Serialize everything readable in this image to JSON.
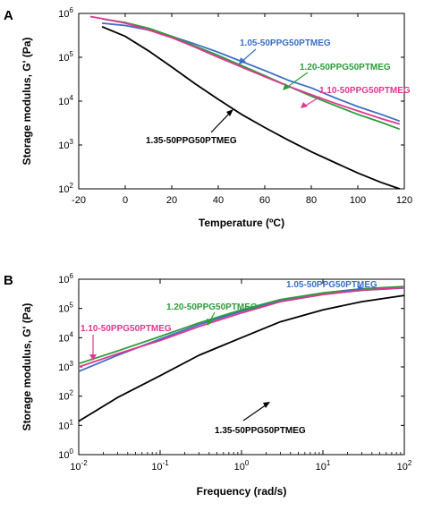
{
  "chart_data": [
    {
      "panel_label": "A",
      "type": "line",
      "xlabel": "Temperature  (ºC)",
      "ylabel": "Storage modulus, G' (Pa)",
      "xlim": [
        -20,
        120
      ],
      "ylim_exp": [
        2,
        6
      ],
      "yscale": "log",
      "x_ticks": [
        "-20",
        "0",
        "20",
        "40",
        "60",
        "80",
        "100",
        "120"
      ],
      "y_tick_exponents": [
        "2",
        "3",
        "4",
        "5",
        "6"
      ],
      "y_tick_base": "10",
      "series": [
        {
          "name": "1.05-50PPG50PTMEG",
          "color": "#3a6fc4",
          "x": [
            -10,
            0,
            10,
            20,
            30,
            40,
            50,
            60,
            70,
            80,
            90,
            100,
            110,
            118
          ],
          "y": [
            600000,
            530000,
            420000,
            300000,
            200000,
            130000,
            80000,
            50000,
            30000,
            20000,
            12000,
            7500,
            5000,
            3500
          ]
        },
        {
          "name": "1.20-50PPG50PTMEG",
          "color": "#2a9d3a",
          "x": [
            -10,
            0,
            10,
            20,
            30,
            40,
            50,
            60,
            70,
            80,
            90,
            100,
            110,
            118
          ],
          "y": [
            750000,
            620000,
            460000,
            300000,
            180000,
            110000,
            65000,
            38000,
            22000,
            13000,
            8000,
            5000,
            3300,
            2300
          ]
        },
        {
          "name": "1.10-50PPG50PTMEG",
          "color": "#e0378f",
          "x": [
            -15,
            -10,
            0,
            10,
            20,
            30,
            40,
            50,
            60,
            70,
            80,
            90,
            100,
            110,
            118
          ],
          "y": [
            850000,
            760000,
            600000,
            420000,
            280000,
            170000,
            100000,
            60000,
            36000,
            22000,
            14000,
            9000,
            6000,
            4000,
            3000
          ]
        },
        {
          "name": "1.35-50PPG50PTMEG",
          "color": "#000000",
          "x": [
            -10,
            0,
            10,
            20,
            30,
            40,
            50,
            60,
            70,
            80,
            90,
            100,
            110,
            118
          ],
          "y": [
            500000,
            300000,
            140000,
            60000,
            25000,
            11000,
            5000,
            2500,
            1300,
            700,
            400,
            230,
            140,
            100
          ]
        }
      ],
      "annotations": [
        {
          "text": "1.05-50PPG50PTMEG",
          "color": "#3a6fc4"
        },
        {
          "text": "1.20-50PPG50PTMEG",
          "color": "#2a9d3a"
        },
        {
          "text": "1.10-50PPG50PTMEG",
          "color": "#e0378f"
        },
        {
          "text": "1.35-50PPG50PTMEG",
          "color": "#000000"
        }
      ]
    },
    {
      "panel_label": "B",
      "type": "line",
      "xlabel": "Frequency  (rad/s)",
      "ylabel": "Storage modulus, G' (Pa)",
      "xscale": "log",
      "yscale": "log",
      "xlim_exp": [
        -2,
        2
      ],
      "ylim_exp": [
        0,
        6
      ],
      "x_tick_exponents": [
        "-2",
        "-1",
        "0",
        "1",
        "2"
      ],
      "y_tick_exponents": [
        "0",
        "1",
        "2",
        "3",
        "4",
        "5",
        "6"
      ],
      "tick_base": "10",
      "series": [
        {
          "name": "1.05-50PPG50PTMEG",
          "color": "#3a6fc4",
          "x": [
            0.01,
            0.03,
            0.1,
            0.3,
            1,
            3,
            10,
            30,
            100
          ],
          "y": [
            700,
            2500,
            9000,
            28000,
            80000,
            180000,
            300000,
            420000,
            500000
          ]
        },
        {
          "name": "1.20-50PPG50PTMEG",
          "color": "#2a9d3a",
          "x": [
            0.01,
            0.03,
            0.1,
            0.3,
            1,
            3,
            10,
            30,
            100
          ],
          "y": [
            1300,
            3500,
            11000,
            32000,
            90000,
            200000,
            340000,
            470000,
            560000
          ]
        },
        {
          "name": "1.10-50PPG50PTMEG",
          "color": "#e0378f",
          "x": [
            0.01,
            0.03,
            0.1,
            0.3,
            1,
            3,
            10,
            30,
            100
          ],
          "y": [
            1000,
            2800,
            8000,
            24000,
            70000,
            170000,
            300000,
            420000,
            520000
          ]
        },
        {
          "name": "1.35-50PPG50PTMEG",
          "color": "#000000",
          "x": [
            0.01,
            0.03,
            0.1,
            0.3,
            1,
            3,
            10,
            30,
            100
          ],
          "y": [
            14,
            90,
            500,
            2500,
            10000,
            35000,
            90000,
            170000,
            280000
          ]
        }
      ],
      "annotations": [
        {
          "text": "1.05-50PPG50PTMEG",
          "color": "#3a6fc4"
        },
        {
          "text": "1.20-50PPG50PTMEG",
          "color": "#2a9d3a"
        },
        {
          "text": "1.10-50PPG50PTMEG",
          "color": "#e0378f"
        },
        {
          "text": "1.35-50PPG50PTMEG",
          "color": "#000000"
        }
      ]
    }
  ]
}
